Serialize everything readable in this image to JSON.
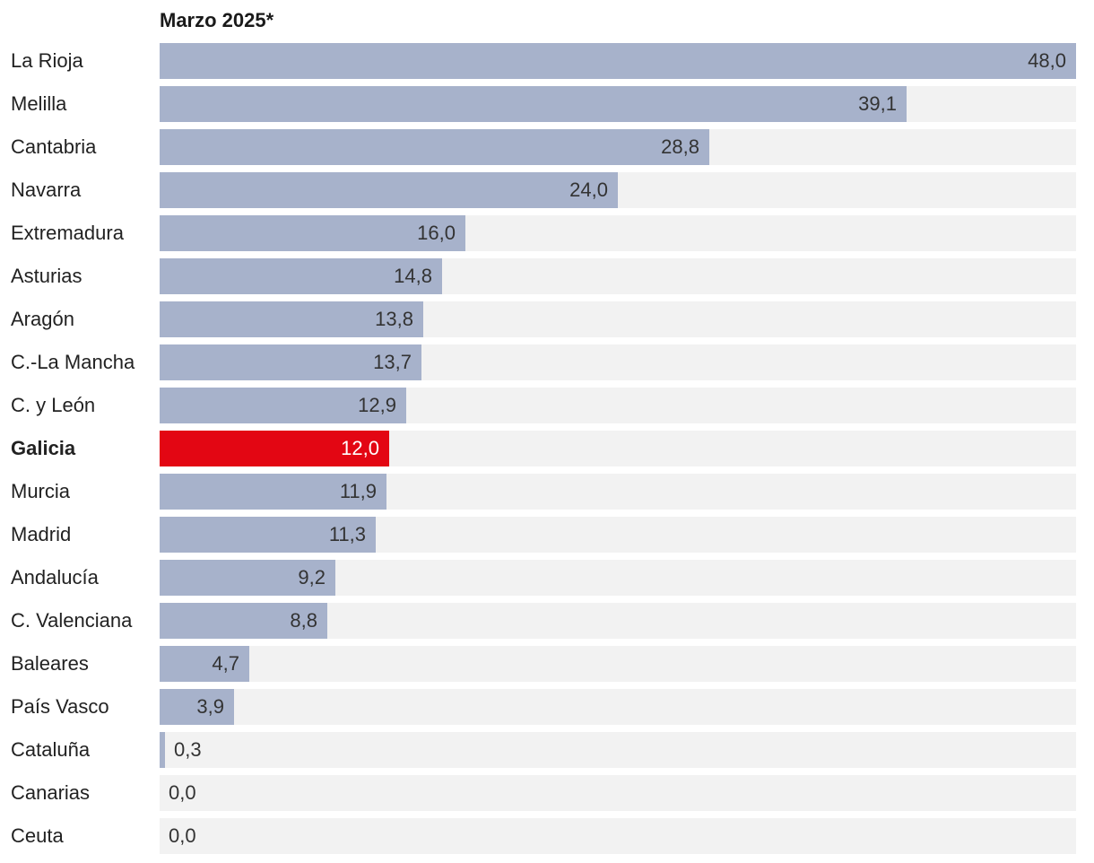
{
  "chart_data": {
    "type": "bar",
    "orientation": "horizontal",
    "title": "Marzo 2025*",
    "xlim": [
      0,
      48
    ],
    "highlight_color": "#e30613",
    "bar_color": "#a7b2cb",
    "track_color": "#f2f2f2",
    "categories": [
      "La Rioja",
      "Melilla",
      "Cantabria",
      "Navarra",
      "Extremadura",
      "Asturias",
      "Aragón",
      "C.-La Mancha",
      "C. y León",
      "Galicia",
      "Murcia",
      "Madrid",
      "Andalucía",
      "C. Valenciana",
      "Baleares",
      "País Vasco",
      "Cataluña",
      "Canarias",
      "Ceuta"
    ],
    "values": [
      48.0,
      39.1,
      28.8,
      24.0,
      16.0,
      14.8,
      13.8,
      13.7,
      12.9,
      12.0,
      11.9,
      11.3,
      9.2,
      8.8,
      4.7,
      3.9,
      0.3,
      0.0,
      0.0
    ],
    "value_labels": [
      "48,0",
      "39,1",
      "28,8",
      "24,0",
      "16,0",
      "14,8",
      "13,8",
      "13,7",
      "12,9",
      "12,0",
      "11,9",
      "11,3",
      "9,2",
      "8,8",
      "4,7",
      "3,9",
      "0,3",
      "0,0",
      "0,0"
    ],
    "highlight": "Galicia"
  }
}
